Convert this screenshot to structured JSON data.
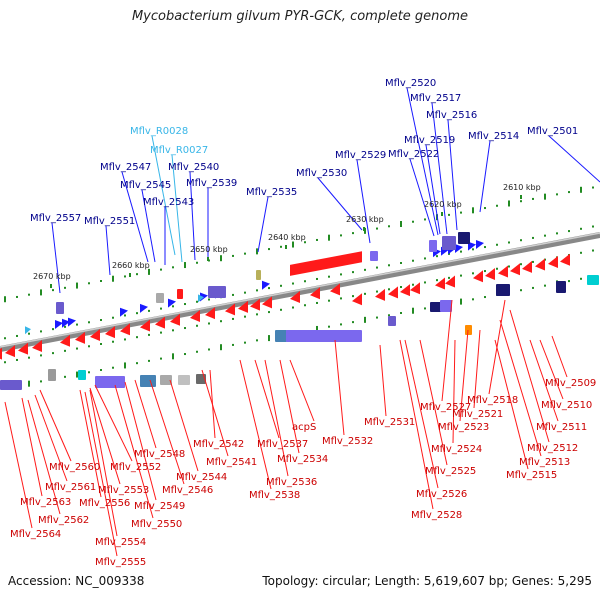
{
  "title": "Mycobacterium gilvum PYR-GCK, complete genome",
  "accession_text": "Accession: NC_009338",
  "topology_text": "Topology: circular; Length: 5,619,607 bp; Genes: 5,295",
  "colors": {
    "forward_gene": "#1a1aff",
    "reverse_gene": "#ff1a1a",
    "rna_gene": "#38b6e8",
    "backbone": "#888888",
    "gc_marks": "#228b22"
  },
  "kbp_ticks": [
    "2610 kbp",
    "2620 kbp",
    "2630 kbp",
    "2640 kbp",
    "2650 kbp",
    "2660 kbp",
    "2670 kbp"
  ],
  "top_labels": [
    "Mflv_2520",
    "Mflv_2517",
    "Mflv_2516",
    "Mflv_2519",
    "Mflv_2522",
    "Mflv_2514",
    "Mflv_2501",
    "Mflv_2529",
    "Mflv_2530",
    "Mflv_R0028",
    "Mflv_R0027",
    "Mflv_2547",
    "Mflv_2540",
    "Mflv_2545",
    "Mflv_2539",
    "Mflv_2543",
    "Mflv_2535",
    "Mflv_2557",
    "Mflv_2551"
  ],
  "bottom_labels": [
    "Mflv_2509",
    "Mflv_2510",
    "Mflv_2518",
    "Mflv_2527",
    "Mflv_2521",
    "Mflv_2511",
    "Mflv_2523",
    "Mflv_2531",
    "Mflv_2512",
    "Mflv_2524",
    "Mflv_2513",
    "acpS",
    "Mflv_2532",
    "Mflv_2515",
    "Mflv_2525",
    "Mflv_2542",
    "Mflv_2537",
    "Mflv_2548",
    "Mflv_2541",
    "Mflv_2534",
    "Mflv_2560",
    "Mflv_2552",
    "Mflv_2544",
    "Mflv_2536",
    "Mflv_2526",
    "Mflv_2561",
    "Mflv_2553",
    "Mflv_2546",
    "Mflv_2538",
    "Mflv_2563",
    "Mflv_2556",
    "Mflv_2549",
    "Mflv_2528",
    "Mflv_2562",
    "Mflv_2550",
    "Mflv_2564",
    "Mflv_2554",
    "Mflv_2555"
  ]
}
